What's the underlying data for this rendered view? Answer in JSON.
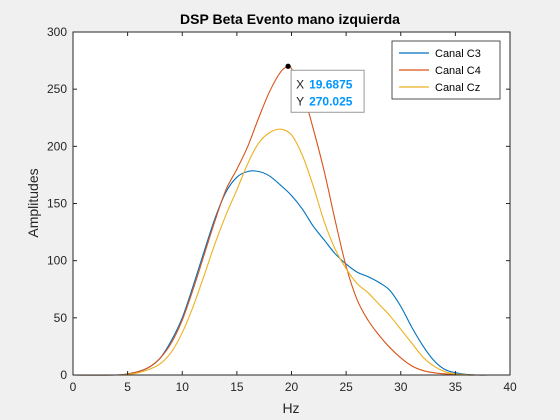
{
  "chart_data": {
    "type": "line",
    "title": "DSP Beta Evento mano izquierda",
    "xlabel": "Hz",
    "ylabel": "Amplitudes",
    "xlim": [
      0,
      40
    ],
    "ylim": [
      0,
      300
    ],
    "xticks": [
      0,
      5,
      10,
      15,
      20,
      25,
      30,
      35,
      40
    ],
    "yticks": [
      0,
      50,
      100,
      150,
      200,
      250,
      300
    ],
    "grid": false,
    "legend_position": "top-right",
    "series": [
      {
        "name": "Canal C3",
        "color": "#0072BD",
        "x": [
          0,
          4,
          5,
          6,
          7,
          8,
          9,
          10,
          11,
          12,
          13,
          14,
          15,
          16,
          17,
          18,
          19,
          20,
          21,
          22,
          23,
          24,
          25,
          26,
          27,
          28,
          29,
          30,
          31,
          32,
          33,
          34,
          35,
          36,
          37,
          38,
          40
        ],
        "y": [
          0,
          0,
          1,
          3,
          7,
          15,
          30,
          50,
          78,
          108,
          137,
          160,
          173,
          178,
          178,
          174,
          166,
          157,
          145,
          130,
          118,
          106,
          97,
          90,
          86,
          81,
          74,
          60,
          42,
          26,
          13,
          5,
          2,
          0.5,
          0,
          0,
          0
        ]
      },
      {
        "name": "Canal C4",
        "color": "#D95319",
        "x": [
          0,
          4,
          5,
          6,
          7,
          8,
          9,
          10,
          11,
          12,
          13,
          14,
          15,
          16,
          17,
          18,
          19,
          19.6875,
          20,
          21,
          22,
          23,
          24,
          25,
          26,
          27,
          28,
          29,
          30,
          31,
          32,
          33,
          34,
          35,
          36,
          37,
          38,
          40
        ],
        "y": [
          0,
          0,
          1,
          3,
          7,
          15,
          28,
          48,
          75,
          105,
          135,
          162,
          180,
          200,
          225,
          248,
          265,
          270.025,
          268,
          248,
          215,
          178,
          135,
          95,
          66,
          48,
          35,
          24,
          15,
          8,
          4,
          2,
          1,
          0.5,
          0,
          0,
          0,
          0
        ]
      },
      {
        "name": "Canal Cz",
        "color": "#EDB120",
        "x": [
          0,
          4,
          5,
          6,
          7,
          8,
          9,
          10,
          11,
          12,
          13,
          14,
          15,
          16,
          17,
          18,
          19,
          20,
          21,
          22,
          23,
          24,
          25,
          26,
          27,
          28,
          29,
          30,
          31,
          32,
          33,
          34,
          35,
          36,
          37,
          38,
          40
        ],
        "y": [
          0,
          0,
          0.5,
          2,
          5,
          10,
          20,
          37,
          60,
          87,
          115,
          140,
          162,
          185,
          203,
          212,
          215,
          210,
          192,
          165,
          134,
          110,
          93,
          80,
          72,
          62,
          52,
          40,
          28,
          16,
          8,
          3,
          1,
          0.3,
          0,
          0,
          0
        ]
      }
    ],
    "datatip": {
      "x_label": "X",
      "x_value": "19.6875",
      "y_label": "Y",
      "y_value": "270.025",
      "x": 19.6875,
      "y": 270.025,
      "series": "Canal C4"
    }
  }
}
